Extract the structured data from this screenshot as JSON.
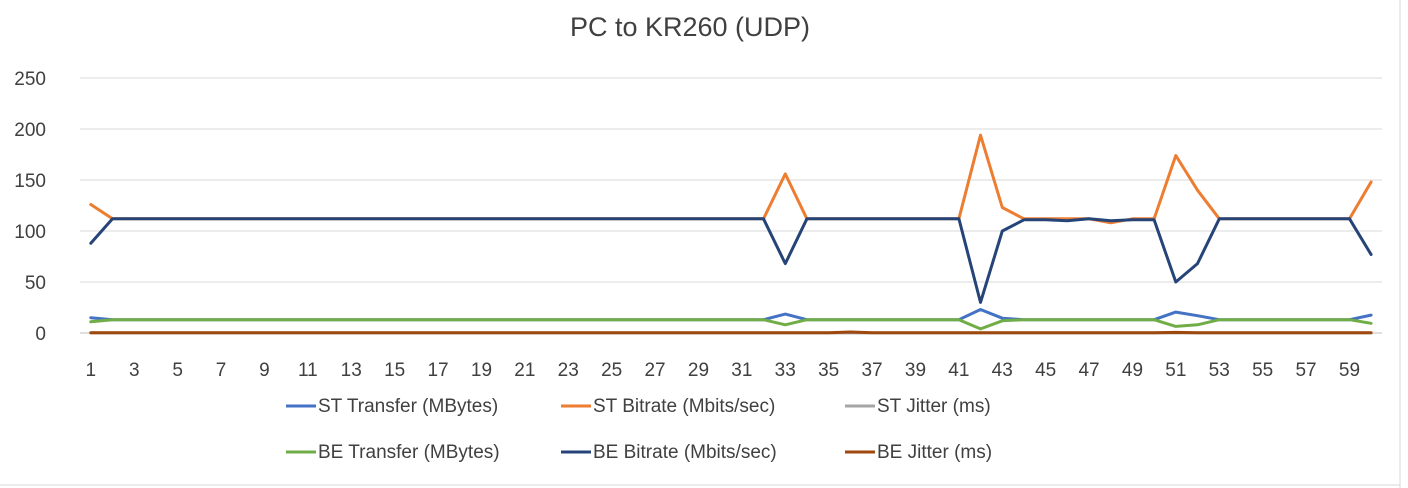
{
  "chart_data": {
    "type": "line",
    "title": "PC to KR260 (UDP)",
    "xlabel": "",
    "ylabel": "",
    "ylim": [
      0,
      250
    ],
    "yticks": [
      0,
      50,
      100,
      150,
      200,
      250
    ],
    "x": [
      1,
      2,
      3,
      4,
      5,
      6,
      7,
      8,
      9,
      10,
      11,
      12,
      13,
      14,
      15,
      16,
      17,
      18,
      19,
      20,
      21,
      22,
      23,
      24,
      25,
      26,
      27,
      28,
      29,
      30,
      31,
      32,
      33,
      34,
      35,
      36,
      37,
      38,
      39,
      40,
      41,
      42,
      43,
      44,
      45,
      46,
      47,
      48,
      49,
      50,
      51,
      52,
      53,
      54,
      55,
      56,
      57,
      58,
      59,
      60
    ],
    "xtick_labels": [
      "1",
      "3",
      "5",
      "7",
      "9",
      "11",
      "13",
      "15",
      "17",
      "19",
      "21",
      "23",
      "25",
      "27",
      "29",
      "31",
      "33",
      "35",
      "37",
      "39",
      "41",
      "43",
      "45",
      "47",
      "49",
      "51",
      "53",
      "55",
      "57",
      "59"
    ],
    "grid": "horizontal",
    "legend_position": "bottom",
    "series": [
      {
        "name": "ST Transfer (MBytes)",
        "color": "#4472C4",
        "values": [
          15,
          13,
          13,
          13,
          13,
          13,
          13,
          13,
          13,
          13,
          13,
          13,
          13,
          13,
          13,
          13,
          13,
          13,
          13,
          13,
          13,
          13,
          13,
          13,
          13,
          13,
          13,
          13,
          13,
          13,
          13,
          13,
          18.5,
          13,
          13,
          13,
          13,
          13,
          13,
          13,
          13,
          23,
          14.5,
          13,
          13,
          13,
          13,
          13,
          13,
          13,
          20.5,
          17,
          13,
          13,
          13,
          13,
          13,
          13,
          13,
          17.5
        ]
      },
      {
        "name": "ST Bitrate (Mbits/sec)",
        "color": "#ED7D31",
        "values": [
          126,
          112,
          112,
          112,
          112,
          112,
          112,
          112,
          112,
          112,
          112,
          112,
          112,
          112,
          112,
          112,
          112,
          112,
          112,
          112,
          112,
          112,
          112,
          112,
          112,
          112,
          112,
          112,
          112,
          112,
          112,
          112,
          156,
          112,
          112,
          112,
          112,
          112,
          112,
          112,
          112,
          194,
          123,
          112,
          112,
          112,
          112,
          108,
          112,
          112,
          174,
          140,
          112,
          112,
          112,
          112,
          112,
          112,
          112,
          148
        ]
      },
      {
        "name": "ST Jitter (ms)",
        "color": "#A5A5A5",
        "values": [
          0.1,
          0.1,
          0.1,
          0.1,
          0.1,
          0.1,
          0.1,
          0.1,
          0.1,
          0.1,
          0.1,
          0.1,
          0.1,
          0.1,
          0.1,
          0.1,
          0.1,
          0.1,
          0.1,
          0.1,
          0.1,
          0.1,
          0.1,
          0.1,
          0.1,
          0.1,
          0.1,
          0.1,
          0.1,
          0.1,
          0.1,
          0.1,
          0.1,
          0.1,
          0.1,
          0.1,
          0.1,
          0.1,
          0.1,
          0.1,
          0.1,
          0.1,
          0.1,
          0.1,
          0.1,
          0.1,
          0.1,
          0.1,
          0.1,
          0.1,
          0.1,
          0.1,
          0.1,
          0.1,
          0.1,
          0.1,
          0.1,
          0.1,
          0.1,
          0.1
        ]
      },
      {
        "name": "BE Transfer (MBytes)",
        "color": "#70AD47",
        "values": [
          11,
          13,
          13,
          13,
          13,
          13,
          13,
          13,
          13,
          13,
          13,
          13,
          13,
          13,
          13,
          13,
          13,
          13,
          13,
          13,
          13,
          13,
          13,
          13,
          13,
          13,
          13,
          13,
          13,
          13,
          13,
          13,
          8,
          13,
          13,
          13,
          13,
          13,
          13,
          13,
          13,
          4,
          12,
          13,
          13,
          13,
          13,
          13,
          13,
          13,
          6.5,
          8,
          13,
          13,
          13,
          13,
          13,
          13,
          13,
          9.5
        ]
      },
      {
        "name": "BE Bitrate (Mbits/sec)",
        "color": "#264478",
        "values": [
          88,
          112,
          112,
          112,
          112,
          112,
          112,
          112,
          112,
          112,
          112,
          112,
          112,
          112,
          112,
          112,
          112,
          112,
          112,
          112,
          112,
          112,
          112,
          112,
          112,
          112,
          112,
          112,
          112,
          112,
          112,
          112,
          68,
          112,
          112,
          112,
          112,
          112,
          112,
          112,
          112,
          30,
          100,
          111,
          111,
          110,
          112,
          110,
          111,
          111,
          50,
          68,
          112,
          112,
          112,
          112,
          112,
          112,
          112,
          77
        ]
      },
      {
        "name": "BE Jitter (ms)",
        "color": "#9E480E",
        "values": [
          0.2,
          0.2,
          0.2,
          0.2,
          0.2,
          0.2,
          0.2,
          0.2,
          0.2,
          0.2,
          0.2,
          0.2,
          0.2,
          0.2,
          0.2,
          0.2,
          0.2,
          0.2,
          0.2,
          0.2,
          0.2,
          0.2,
          0.2,
          0.2,
          0.2,
          0.2,
          0.2,
          0.2,
          0.2,
          0.2,
          0.2,
          0.2,
          0.2,
          0.2,
          0.2,
          1.0,
          0.2,
          0.2,
          0.2,
          0.2,
          0.2,
          0.2,
          0.2,
          0.2,
          0.2,
          0.2,
          0.2,
          0.2,
          0.2,
          0.2,
          0.6,
          0.2,
          0.2,
          0.2,
          0.2,
          0.2,
          0.2,
          0.2,
          0.2,
          0.2
        ]
      }
    ]
  }
}
